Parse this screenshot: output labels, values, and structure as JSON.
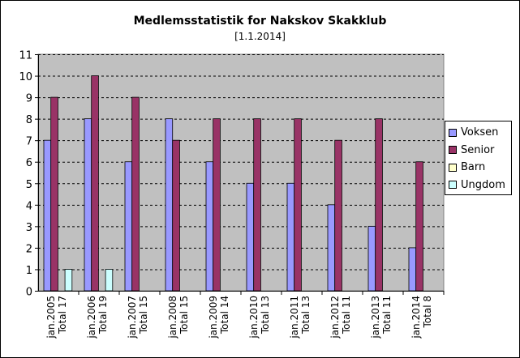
{
  "chart_data": {
    "type": "bar",
    "title": "Medlemsstatistik for Nakskov Skakklub",
    "subtitle": "[1.1.2014]",
    "categories": [
      [
        "jan.2005",
        "Total 17"
      ],
      [
        "jan.2006",
        "Total 19"
      ],
      [
        "jan.2007",
        "Total 15"
      ],
      [
        "jan.2008",
        "Total 15"
      ],
      [
        "jan.2009",
        "Total 14"
      ],
      [
        "jan.2010",
        "Total 13"
      ],
      [
        "jan.2011",
        "Total 13"
      ],
      [
        "jan.2012",
        "Total 11"
      ],
      [
        "jan.2013",
        "Total 11"
      ],
      [
        "jan.2014",
        "Total 8"
      ]
    ],
    "series": [
      {
        "name": "Voksen",
        "color": "#9999ff",
        "values": [
          7,
          8,
          6,
          8,
          6,
          5,
          5,
          4,
          3,
          2
        ]
      },
      {
        "name": "Senior",
        "color": "#993366",
        "values": [
          9,
          10,
          9,
          7,
          8,
          8,
          8,
          7,
          8,
          6
        ]
      },
      {
        "name": "Barn",
        "color": "#ffffcc",
        "values": [
          0,
          0,
          0,
          0,
          0,
          0,
          0,
          0,
          0,
          0
        ]
      },
      {
        "name": "Ungdom",
        "color": "#ccffff",
        "values": [
          1,
          1,
          0,
          0,
          0,
          0,
          0,
          0,
          0,
          0
        ]
      }
    ],
    "ylim": [
      0,
      11
    ],
    "yticks": [
      0,
      1,
      2,
      3,
      4,
      5,
      6,
      7,
      8,
      9,
      10,
      11
    ],
    "plot_background": "#c0c0c0",
    "grid": true,
    "legend_position": "right"
  }
}
